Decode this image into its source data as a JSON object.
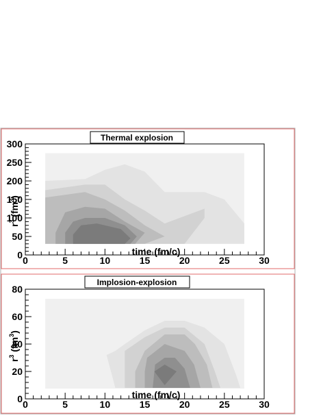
{
  "chart_data": [
    {
      "type": "heatmap",
      "title": "Thermal explosion",
      "xlabel": "time  (fm/c)",
      "ylabel_main": "r",
      "ylabel_exp": "3",
      "ylabel_unit_open": " (fm",
      "ylabel_unit_exp": "3",
      "ylabel_unit_close": ")",
      "xlim": [
        0,
        30
      ],
      "ylim": [
        0,
        300
      ],
      "xticks": [
        0,
        5,
        10,
        15,
        20,
        25,
        30
      ],
      "yticks": [
        0,
        50,
        100,
        150,
        200,
        250,
        300
      ],
      "xtick_labels": [
        "0",
        "5",
        "10",
        "15",
        "20",
        "25",
        "30"
      ],
      "ytick_labels": [
        "0",
        "50",
        "100",
        "150",
        "200",
        "250",
        "300"
      ],
      "grid": false,
      "levels": [
        {
          "level": 1,
          "color": "#f0f0f0",
          "polygon": [
            [
              2.5,
              30
            ],
            [
              27.5,
              30
            ],
            [
              27.5,
              275
            ],
            [
              2.5,
              275
            ]
          ]
        },
        {
          "level": 2,
          "color": "#e3e3e3",
          "polygon": [
            [
              2.5,
              30
            ],
            [
              27.5,
              30
            ],
            [
              27.5,
              85
            ],
            [
              25,
              150
            ],
            [
              22.5,
              170
            ],
            [
              17.5,
              170
            ],
            [
              15,
              225
            ],
            [
              12.5,
              245
            ],
            [
              10,
              230
            ],
            [
              7.5,
              205
            ],
            [
              2.5,
              200
            ]
          ]
        },
        {
          "level": 3,
          "color": "#d2d2d2",
          "polygon": [
            [
              2.5,
              30
            ],
            [
              20,
              30
            ],
            [
              22.5,
              100
            ],
            [
              22.5,
              125
            ],
            [
              20,
              105
            ],
            [
              17.5,
              85
            ],
            [
              15,
              120
            ],
            [
              12.5,
              150
            ],
            [
              10,
              190
            ],
            [
              7.5,
              190
            ],
            [
              2.5,
              175
            ]
          ]
        },
        {
          "level": 4,
          "color": "#bdbdbd",
          "polygon": [
            [
              2.5,
              30
            ],
            [
              15,
              30
            ],
            [
              17.5,
              50
            ],
            [
              15,
              80
            ],
            [
              12.5,
              120
            ],
            [
              10,
              150
            ],
            [
              7.5,
              170
            ],
            [
              2.5,
              155
            ]
          ]
        },
        {
          "level": 5,
          "color": "#a6a6a6",
          "polygon": [
            [
              3.8,
              30
            ],
            [
              13.8,
              30
            ],
            [
              15,
              60
            ],
            [
              12.5,
              90
            ],
            [
              10,
              125
            ],
            [
              7.5,
              130
            ],
            [
              5,
              115
            ],
            [
              3.8,
              60
            ]
          ]
        },
        {
          "level": 6,
          "color": "#8f8f8f",
          "polygon": [
            [
              5,
              30
            ],
            [
              13.2,
              30
            ],
            [
              14,
              50
            ],
            [
              12.5,
              80
            ],
            [
              10,
              100
            ],
            [
              7.5,
              100
            ],
            [
              6,
              90
            ],
            [
              5,
              60
            ]
          ]
        },
        {
          "level": 7,
          "color": "#7b7b7b",
          "polygon": [
            [
              6,
              30
            ],
            [
              12.5,
              30
            ],
            [
              13.2,
              45
            ],
            [
              12,
              70
            ],
            [
              9,
              85
            ],
            [
              7,
              80
            ],
            [
              6,
              55
            ]
          ]
        }
      ]
    },
    {
      "type": "heatmap",
      "title": "Implosion-explosion",
      "xlabel": "time  (fm/c)",
      "ylabel_main": "r",
      "ylabel_exp": "3",
      "ylabel_unit_open": " (fm",
      "ylabel_unit_exp": "3",
      "ylabel_unit_close": ")",
      "xlim": [
        0,
        30
      ],
      "ylim": [
        0,
        80
      ],
      "xticks": [
        0,
        5,
        10,
        15,
        20,
        25,
        30
      ],
      "yticks": [
        0,
        20,
        40,
        60,
        80
      ],
      "xtick_labels": [
        "0",
        "5",
        "10",
        "15",
        "20",
        "25",
        "30"
      ],
      "ytick_labels": [
        "0",
        "20",
        "40",
        "60",
        "80"
      ],
      "grid": false,
      "levels": [
        {
          "level": 1,
          "color": "#f0f0f0",
          "polygon": [
            [
              2.5,
              7.5
            ],
            [
              27.5,
              7.5
            ],
            [
              27.5,
              73
            ],
            [
              2.5,
              73
            ]
          ]
        },
        {
          "level": 2,
          "color": "#e3e3e3",
          "polygon": [
            [
              11.3,
              8
            ],
            [
              27,
              8
            ],
            [
              26.5,
              17
            ],
            [
              25,
              40
            ],
            [
              22.5,
              52
            ],
            [
              20,
              57
            ],
            [
              17.5,
              57
            ],
            [
              15,
              50
            ],
            [
              12.5,
              40
            ],
            [
              11.3,
              35
            ],
            [
              10.2,
              32
            ]
          ]
        },
        {
          "level": 3,
          "color": "#d2d2d2",
          "polygon": [
            [
              12.5,
              8
            ],
            [
              24.5,
              8
            ],
            [
              23.8,
              20
            ],
            [
              22.5,
              40
            ],
            [
              20,
              52
            ],
            [
              17.5,
              52
            ],
            [
              15,
              45
            ],
            [
              12.5,
              35
            ]
          ]
        },
        {
          "level": 4,
          "color": "#bdbdbd",
          "polygon": [
            [
              13.8,
              8
            ],
            [
              23.5,
              8
            ],
            [
              22.8,
              25
            ],
            [
              21.3,
              40
            ],
            [
              20,
              47
            ],
            [
              17.5,
              47
            ],
            [
              15,
              35
            ],
            [
              13.8,
              20
            ]
          ]
        },
        {
          "level": 5,
          "color": "#a6a6a6",
          "polygon": [
            [
              15,
              8
            ],
            [
              22,
              8
            ],
            [
              21.2,
              25
            ],
            [
              20,
              35
            ],
            [
              17.5,
              40
            ],
            [
              15.3,
              30
            ],
            [
              15,
              20
            ]
          ]
        },
        {
          "level": 6,
          "color": "#8f8f8f",
          "polygon": [
            [
              16,
              8
            ],
            [
              20.7,
              8
            ],
            [
              20,
              22
            ],
            [
              18.8,
              30
            ],
            [
              17.5,
              30
            ],
            [
              16.3,
              25
            ]
          ]
        },
        {
          "level": 7,
          "color": "#7b7b7b",
          "polygon": [
            [
              17.5,
              10
            ],
            [
              19,
              20
            ],
            [
              17.5,
              25
            ],
            [
              16.2,
              20
            ]
          ]
        }
      ]
    }
  ]
}
